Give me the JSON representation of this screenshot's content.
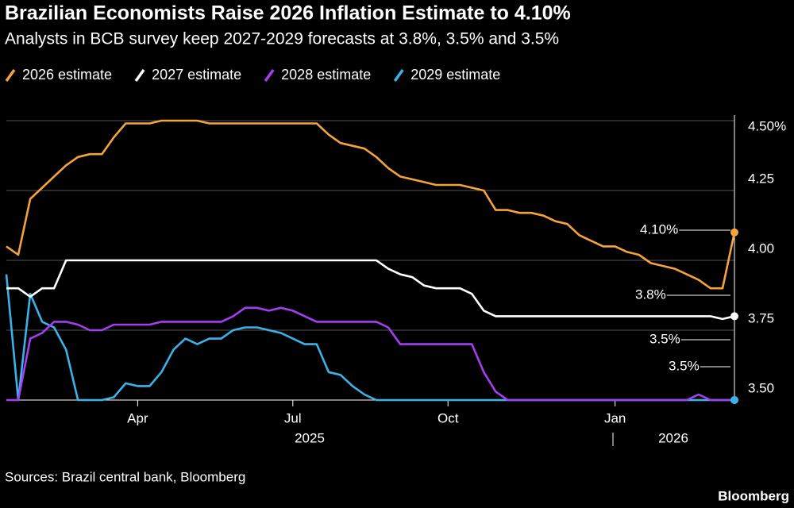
{
  "chart_data": {
    "type": "line",
    "title": "Brazilian Economists Raise 2026 Inflation Estimate to 4.10%",
    "subtitle": "Analysts in BCB survey keep 2027-2029 forecasts at 3.8%, 3.5% and 3.5%",
    "source": "Sources: Brazil central bank, Bloomberg",
    "logo": "Bloomberg",
    "categories": [
      null,
      null,
      null,
      null,
      null,
      null,
      null,
      null,
      null,
      null,
      null,
      "Apr",
      null,
      null,
      null,
      null,
      null,
      null,
      null,
      null,
      null,
      null,
      null,
      null,
      "Jul",
      null,
      null,
      null,
      null,
      null,
      null,
      null,
      null,
      null,
      null,
      null,
      null,
      "Oct",
      null,
      null,
      null,
      null,
      null,
      null,
      null,
      null,
      null,
      null,
      null,
      null,
      null,
      "Jan",
      null,
      null,
      null,
      null,
      null,
      null,
      null,
      null,
      null,
      null
    ],
    "year_labels": [
      "2025",
      "2026"
    ],
    "ylim": [
      3.5,
      4.5
    ],
    "yticks": [
      {
        "value": 3.5,
        "label": "3.50"
      },
      3.75,
      {
        "value": 4,
        "label": "4.00"
      },
      4.25,
      {
        "value": 4.5,
        "label": "4.50%"
      }
    ],
    "grid": true,
    "legend": "top-left",
    "series": [
      {
        "name": "2026 estimate",
        "color": "#f5a33b",
        "values": [
          4.05,
          4.02,
          4.22,
          4.26,
          4.3,
          4.34,
          4.37,
          4.38,
          4.38,
          4.44,
          4.49,
          4.49,
          4.49,
          4.5,
          4.5,
          4.5,
          4.5,
          4.49,
          4.49,
          4.49,
          4.49,
          4.49,
          4.49,
          4.49,
          4.49,
          4.49,
          4.49,
          4.45,
          4.42,
          4.41,
          4.4,
          4.37,
          4.33,
          4.3,
          4.29,
          4.28,
          4.27,
          4.27,
          4.27,
          4.26,
          4.25,
          4.18,
          4.18,
          4.17,
          4.17,
          4.16,
          4.14,
          4.13,
          4.09,
          4.07,
          4.05,
          4.05,
          4.03,
          4.02,
          3.99,
          3.98,
          3.97,
          3.95,
          3.93,
          3.9,
          3.9,
          4.1
        ]
      },
      {
        "name": "2027 estimate",
        "color": "#ffffff",
        "values": [
          3.9,
          3.9,
          3.87,
          3.9,
          3.9,
          4.0,
          4.0,
          4.0,
          4.0,
          4.0,
          4.0,
          4.0,
          4.0,
          4.0,
          4.0,
          4.0,
          4.0,
          4.0,
          4.0,
          4.0,
          4.0,
          4.0,
          4.0,
          4.0,
          4.0,
          4.0,
          4.0,
          4.0,
          4.0,
          4.0,
          4.0,
          4.0,
          3.97,
          3.95,
          3.94,
          3.91,
          3.9,
          3.9,
          3.9,
          3.88,
          3.82,
          3.8,
          3.8,
          3.8,
          3.8,
          3.8,
          3.8,
          3.8,
          3.8,
          3.8,
          3.8,
          3.8,
          3.8,
          3.8,
          3.8,
          3.8,
          3.8,
          3.8,
          3.8,
          3.8,
          3.79,
          3.8
        ]
      },
      {
        "name": "2028 estimate",
        "color": "#a43ef2",
        "values": [
          3.5,
          3.5,
          3.72,
          3.74,
          3.78,
          3.78,
          3.77,
          3.75,
          3.75,
          3.77,
          3.77,
          3.77,
          3.77,
          3.78,
          3.78,
          3.78,
          3.78,
          3.78,
          3.78,
          3.8,
          3.83,
          3.83,
          3.82,
          3.83,
          3.82,
          3.8,
          3.78,
          3.78,
          3.78,
          3.78,
          3.78,
          3.78,
          3.76,
          3.7,
          3.7,
          3.7,
          3.7,
          3.7,
          3.7,
          3.7,
          3.6,
          3.53,
          3.5,
          3.5,
          3.5,
          3.5,
          3.5,
          3.5,
          3.5,
          3.5,
          3.5,
          3.5,
          3.5,
          3.5,
          3.5,
          3.5,
          3.5,
          3.5,
          3.52,
          3.5,
          3.5,
          3.5
        ]
      },
      {
        "name": "2029 estimate",
        "color": "#3ab2ea",
        "values": [
          3.95,
          3.5,
          3.88,
          3.78,
          3.76,
          3.68,
          3.5,
          3.5,
          3.5,
          3.51,
          3.56,
          3.55,
          3.55,
          3.6,
          3.68,
          3.72,
          3.7,
          3.72,
          3.72,
          3.75,
          3.76,
          3.76,
          3.75,
          3.74,
          3.72,
          3.7,
          3.7,
          3.6,
          3.59,
          3.55,
          3.52,
          3.5,
          3.5,
          3.5,
          3.5,
          3.5,
          3.5,
          3.5,
          3.5,
          3.5,
          3.5,
          3.5,
          3.5,
          3.5,
          3.5,
          3.5,
          3.5,
          3.5,
          3.5,
          3.5,
          3.5,
          3.5,
          3.5,
          3.5,
          3.5,
          3.5,
          3.5,
          3.5,
          3.5,
          3.5,
          3.5,
          3.5
        ]
      }
    ],
    "annotations": [
      "4.10%",
      "3.8%",
      "3.5%",
      "3.5%"
    ]
  }
}
